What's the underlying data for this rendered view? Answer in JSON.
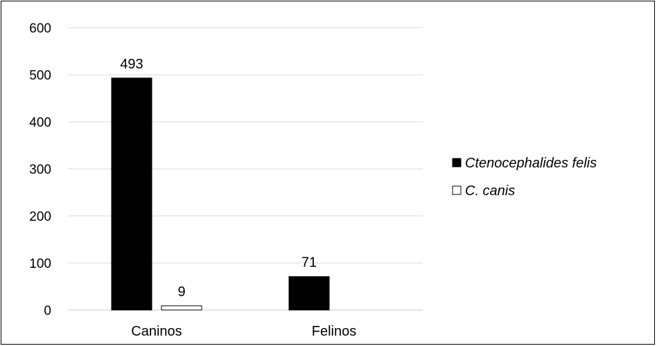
{
  "chart_data": {
    "type": "bar",
    "categories": [
      "Caninos",
      "Felinos"
    ],
    "series": [
      {
        "name": "Ctenocephalides felis",
        "values": [
          493,
          71
        ],
        "color": "#000000"
      },
      {
        "name": "C. canis",
        "values": [
          9,
          null
        ],
        "color": "#ffffff"
      }
    ],
    "data_labels": [
      [
        "493",
        "71"
      ],
      [
        "9",
        ""
      ]
    ],
    "title": "",
    "xlabel": "",
    "ylabel": "",
    "ylim": [
      0,
      600
    ],
    "yticks": [
      "0",
      "100",
      "200",
      "300",
      "400",
      "500",
      "600"
    ],
    "grid": "horizontal",
    "legend_position": "right"
  }
}
